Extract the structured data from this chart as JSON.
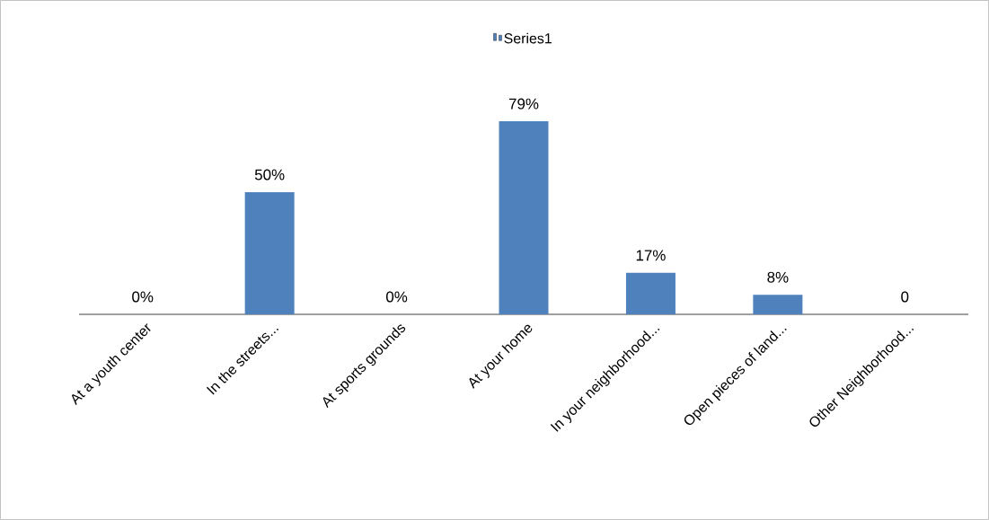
{
  "chart_data": {
    "type": "bar",
    "categories": [
      "At a youth center",
      "In the streets...",
      "At sports grounds",
      "At your home",
      "In your neighborhood...",
      "Open pieces of land...",
      "Other Neighborhood..."
    ],
    "series": [
      {
        "name": "Series1",
        "color": "#4f81bd",
        "values": [
          0,
          50,
          0,
          79,
          17,
          8,
          0
        ],
        "value_labels": [
          "0%",
          "50%",
          "0%",
          "79%",
          "17%",
          "8%",
          "0"
        ]
      }
    ],
    "legend": "top"
  }
}
